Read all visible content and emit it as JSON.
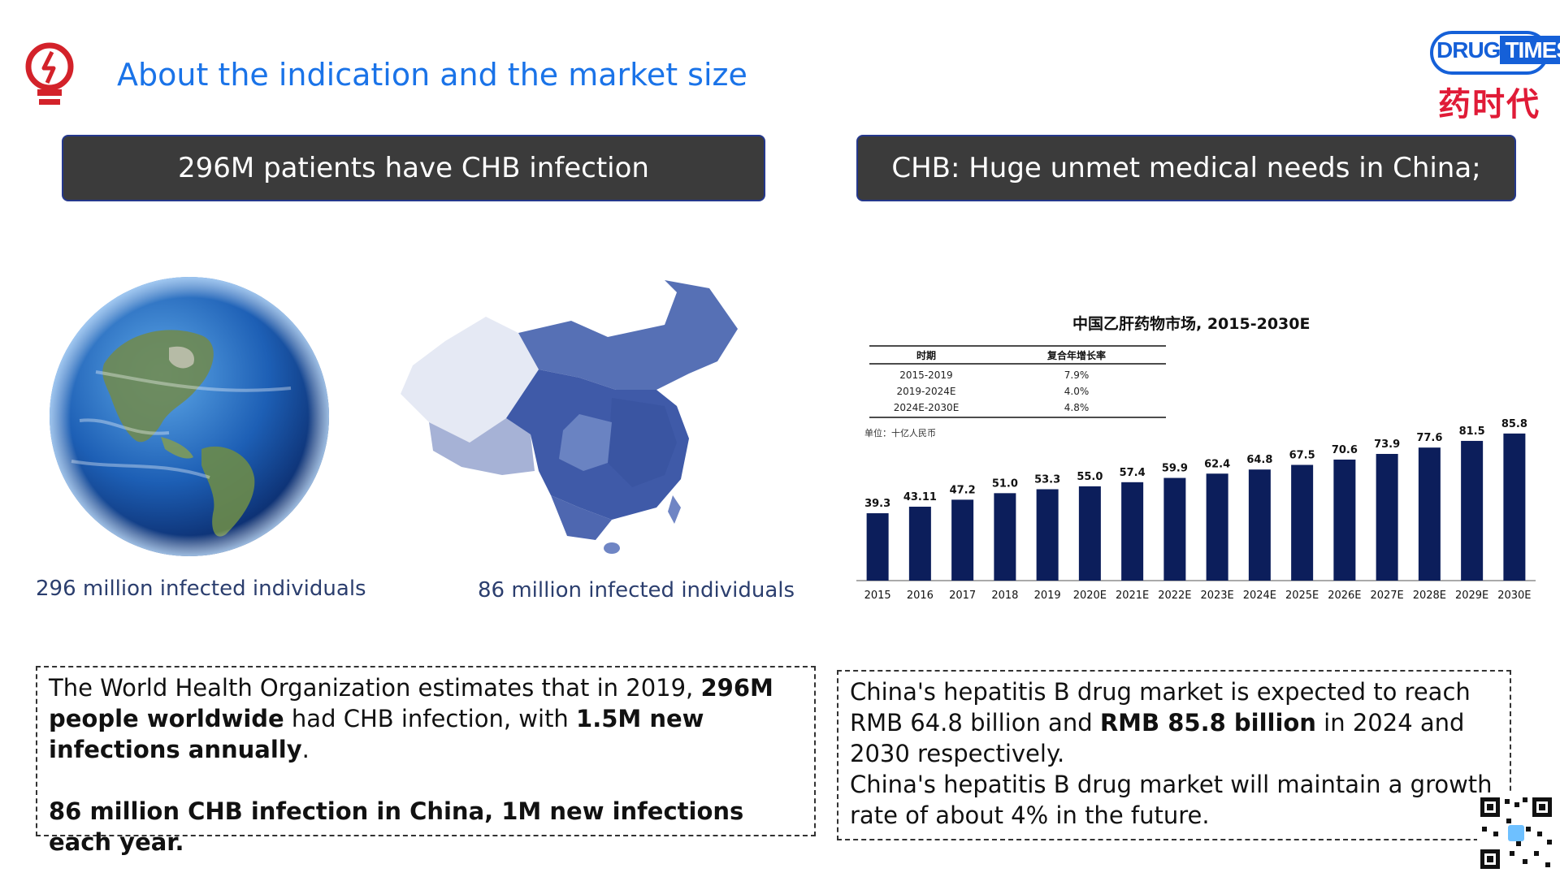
{
  "header": {
    "title": "About the indication and the market size",
    "logo_en_left": "DRUG",
    "logo_en_right": "TIMES",
    "logo_cn": "药时代"
  },
  "headers": {
    "left": "296M patients have CHB infection",
    "right": "CHB: Huge unmet medical needs in China;"
  },
  "captions": {
    "globe": "296 million infected individuals",
    "china": "86 million infected individuals"
  },
  "text_left": {
    "p1_a": "The World Health Organization estimates that in 2019, ",
    "p1_b": "296M people worldwide",
    "p1_c": " had CHB infection, with ",
    "p1_d": "1.5M new infections annually",
    "p1_e": ".",
    "p2": "86 million CHB infection in China, 1M new infections each year."
  },
  "text_right": {
    "p1_a": "China's hepatitis B drug market is expected to reach RMB 64.8 billion and ",
    "p1_b": "RMB 85.8 billion",
    "p1_c": " in 2024 and 2030 respectively.",
    "p2": "China's hepatitis B drug market will maintain a growth rate of about 4% in the future."
  },
  "chart_data": {
    "type": "bar",
    "title": "中国乙肝药物市场, 2015-2030E",
    "unit_label": "单位：十亿人民币",
    "cagr_table": {
      "headers": [
        "时期",
        "复合年增长率"
      ],
      "rows": [
        [
          "2015-2019",
          "7.9%"
        ],
        [
          "2019-2024E",
          "4.0%"
        ],
        [
          "2024E-2030E",
          "4.8%"
        ]
      ]
    },
    "categories": [
      "2015",
      "2016",
      "2017",
      "2018",
      "2019",
      "2020E",
      "2021E",
      "2022E",
      "2023E",
      "2024E",
      "2025E",
      "2026E",
      "2027E",
      "2028E",
      "2029E",
      "2030E"
    ],
    "values": [
      39.3,
      43.11,
      47.2,
      51.0,
      53.3,
      55.0,
      57.4,
      59.9,
      62.4,
      64.8,
      67.5,
      70.6,
      73.9,
      77.6,
      81.5,
      85.8
    ],
    "labels": [
      "39.3",
      "43.11",
      "47.2",
      "51.0",
      "53.3",
      "55.0",
      "57.4",
      "59.9",
      "62.4",
      "64.8",
      "67.5",
      "70.6",
      "73.9",
      "77.6",
      "81.5",
      "85.8"
    ],
    "ylim": [
      0,
      90
    ],
    "bar_color": "#0c1e5b"
  }
}
